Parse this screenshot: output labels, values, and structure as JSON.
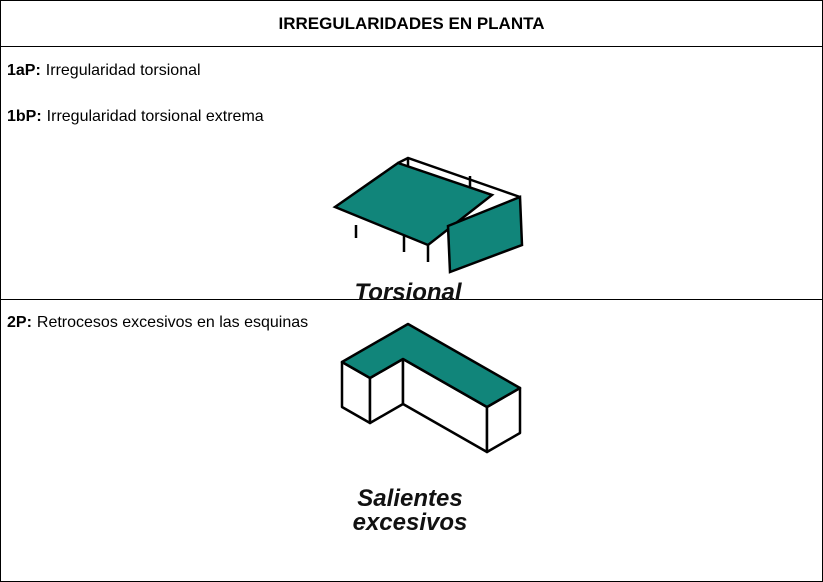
{
  "table": {
    "header": "IRREGULARIDADES EN PLANTA",
    "rows": [
      {
        "items": [
          {
            "code": "1aP:",
            "text": "Irregularidad torsional"
          },
          {
            "code": "1bP:",
            "text": "Irregularidad torsional extrema"
          }
        ],
        "caption": [
          "Torsional"
        ]
      },
      {
        "items": [
          {
            "code": "2P:",
            "text": "Retrocesos excesivos en las esquinas"
          }
        ],
        "caption": [
          "Salientes",
          "excesivos"
        ]
      }
    ]
  }
}
